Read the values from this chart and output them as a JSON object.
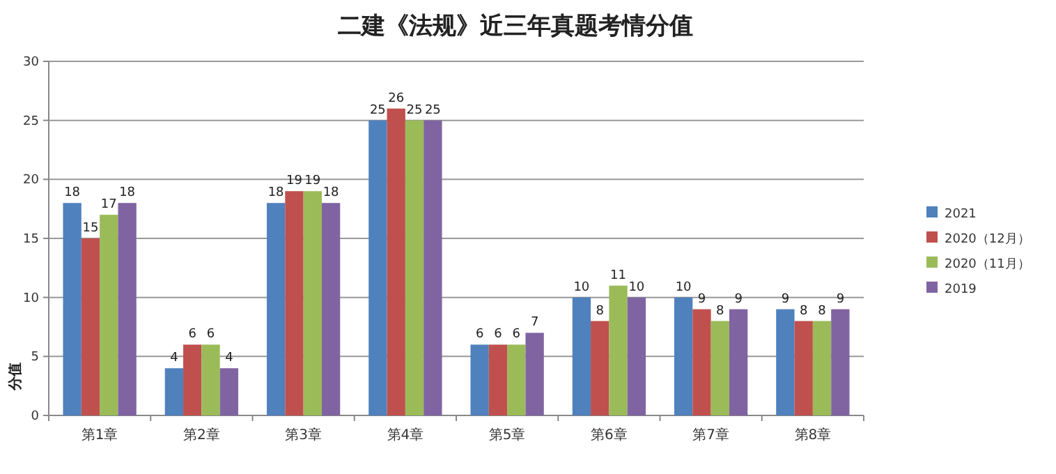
{
  "chart_data": {
    "type": "bar",
    "title": "二建《法规》近三年真题考情分值",
    "ylabel": "分值",
    "categories": [
      "第1章",
      "第2章",
      "第3章",
      "第4章",
      "第5章",
      "第6章",
      "第7章",
      "第8章"
    ],
    "series": [
      {
        "name": "2021",
        "color": "#4f81bd",
        "values": [
          18,
          4,
          18,
          25,
          6,
          10,
          10,
          9
        ]
      },
      {
        "name": "2020（12月）",
        "color": "#c0504d",
        "values": [
          15,
          6,
          19,
          26,
          6,
          8,
          9,
          8
        ]
      },
      {
        "name": "2020（11月）",
        "color": "#9bbb59",
        "values": [
          17,
          6,
          19,
          25,
          6,
          11,
          8,
          8
        ]
      },
      {
        "name": "2019",
        "color": "#8064a2",
        "values": [
          18,
          4,
          18,
          25,
          7,
          10,
          9,
          9
        ]
      }
    ],
    "ylim": [
      0,
      30
    ],
    "yticks": [
      0,
      5,
      10,
      15,
      20,
      25,
      30
    ],
    "grid": "y",
    "legend": "right",
    "data_labels": true
  }
}
